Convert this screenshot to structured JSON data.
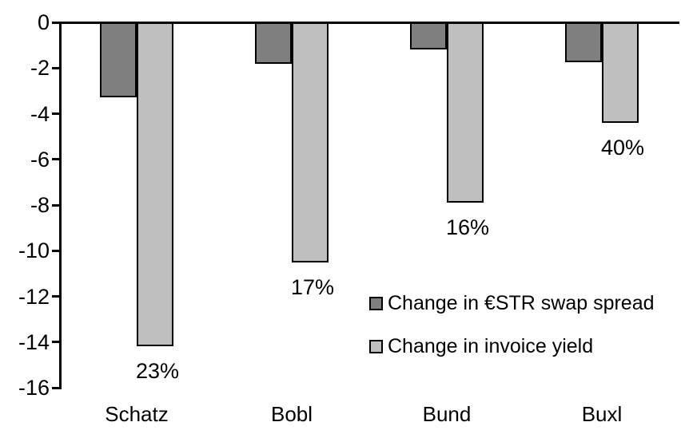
{
  "chart_data": {
    "type": "bar",
    "title": "",
    "xlabel": "",
    "ylabel": "",
    "categories": [
      "Schatz",
      "Bobl",
      "Bund",
      "Buxl"
    ],
    "series": [
      {
        "name": "Change in €STR swap spread",
        "color": "#7f7f7f",
        "values": [
          -3.3,
          -1.8,
          -1.2,
          -1.75
        ]
      },
      {
        "name": "Change in invoice yield",
        "color": "#bfbfbf",
        "values": [
          -14.2,
          -10.5,
          -7.9,
          -4.4
        ],
        "labels": [
          "23%",
          "17%",
          "16%",
          "40%"
        ]
      }
    ],
    "ylim": [
      -16,
      0
    ],
    "yticks": [
      0,
      -2,
      -4,
      -6,
      -8,
      -10,
      -12,
      -14,
      -16
    ],
    "grid": false,
    "legend_position": "inside-right-middle",
    "axis_color": "#000000",
    "bar_border_color": "#000000",
    "text_color": "#000000",
    "background": "#ffffff"
  }
}
